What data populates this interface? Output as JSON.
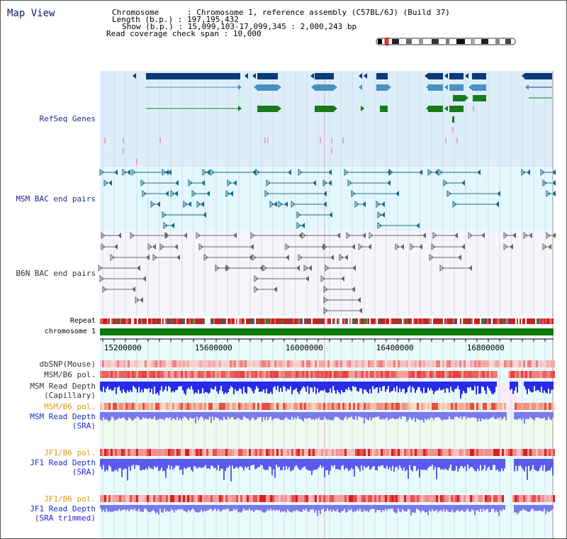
{
  "window": {
    "title": "Map View"
  },
  "header": {
    "chromosome_key": "Chromosome",
    "chromosome_value": "Chromosome 1, reference assembly (C57BL/6J) (Build 37)",
    "length_key": "Length (b.p.)",
    "length_value": "197,195,432",
    "show_key": "Show (b.p.)",
    "show_value": "15,099,103-17,099,345 : 2,000,243 bp",
    "coverage_key": "Read coverage check span",
    "coverage_value": "10,000"
  },
  "tracks": {
    "refseq": "RefSeq Genes",
    "msm_bac": "MSM BAC end pairs",
    "b6n_bac": "B6N BAC end pairs",
    "repeat": "Repeat",
    "chromosome": "chromosome 1",
    "dbsnp": "dbSNP(Mouse)",
    "msm_b6_pol_1": "MSM/B6 pol.",
    "msm_depth_cap_1": "MSM Read Depth",
    "msm_depth_cap_2": "(Capillary)",
    "msm_b6_pol_2": "MSM/B6 pol.",
    "msm_depth_sra_1": "MSM Read Depth",
    "msm_depth_sra_2": "(SRA)",
    "jf1_b6_pol_1": "JF1/B6 pol.",
    "jf1_depth_sra_1": "JF1 Read Depth",
    "jf1_depth_sra_2": "(SRA)",
    "jf1_b6_pol_2": "JF1/B6 pol.",
    "jf1_depth_trim_1": "JF1 Read Depth",
    "jf1_depth_trim_2": "(SRA trimmed)"
  },
  "axis": {
    "ticks": [
      "15200000",
      "15600000",
      "16000000",
      "16400000",
      "16800000"
    ],
    "tick_values": [
      15200000,
      15600000,
      16000000,
      16400000,
      16800000
    ],
    "start": 15099103,
    "end": 17099345
  },
  "colors": {
    "refseq_bg": "#dceefa",
    "msm_bg": "#e2f8fc",
    "b6n_bg": "#f4f6fa",
    "gene_dark": "#0a3a78",
    "gene_mid": "#4a90c0",
    "gene_green": "#1a7a1a",
    "msm_pair": "#1a6a8a",
    "b6n_pair": "#666666",
    "chromosome_bar": "#0a7a0a",
    "depth_blue": "#2a2ae8",
    "depth_light": "#7a7aee"
  }
}
